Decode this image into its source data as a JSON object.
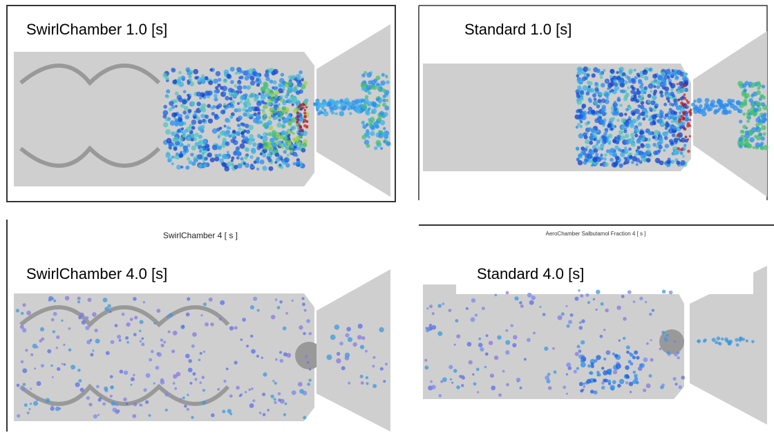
{
  "panels": [
    {
      "label": "SwirlChamber 1.0 [s]"
    },
    {
      "label": "Standard 1.0 [s]"
    },
    {
      "header": "SwirlChamber 4 [ s ]",
      "label": "SwirlChamber 4.0 [s]"
    },
    {
      "header": "AeroChamber Salbutamol Fraction 4 [ s ]",
      "label": "Standard 4.0 [s]"
    }
  ]
}
